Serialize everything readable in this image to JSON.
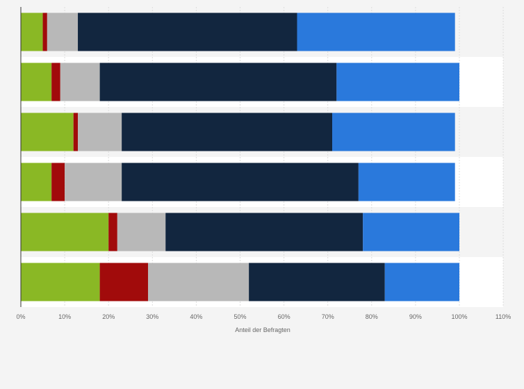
{
  "chart_data": {
    "type": "bar",
    "orientation": "horizontal",
    "stacked": true,
    "xlabel": "Anteil der Befragten",
    "ylabel": "",
    "xlim": [
      0,
      110
    ],
    "ticks": [
      0,
      10,
      20,
      30,
      40,
      50,
      60,
      70,
      80,
      90,
      100,
      110
    ],
    "tick_labels": [
      "0%",
      "10%",
      "20%",
      "30%",
      "40%",
      "50%",
      "60%",
      "70%",
      "80%",
      "90%",
      "100%",
      "110%"
    ],
    "grid": true,
    "categories": [
      "",
      "",
      "",
      "",
      "",
      ""
    ],
    "series": [
      {
        "color": "#8ab825",
        "values": [
          5,
          7,
          12,
          7,
          20,
          18
        ]
      },
      {
        "color": "#a10b0b",
        "values": [
          1,
          2,
          1,
          3,
          2,
          11
        ]
      },
      {
        "color": "#b8b8b8",
        "values": [
          7,
          9,
          10,
          13,
          11,
          23
        ]
      },
      {
        "color": "#12263f",
        "values": [
          50,
          54,
          48,
          54,
          45,
          31
        ]
      },
      {
        "color": "#2a79dc",
        "values": [
          36,
          28,
          28,
          22,
          22,
          17
        ]
      }
    ]
  }
}
